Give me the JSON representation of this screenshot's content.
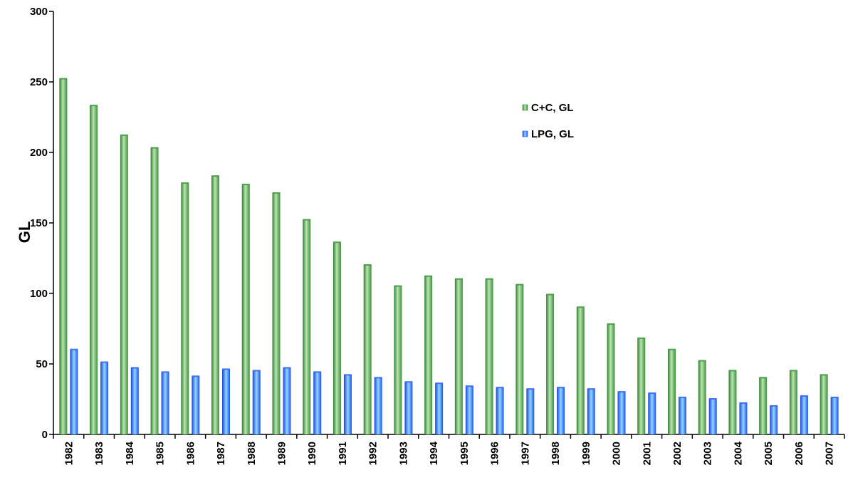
{
  "chart_data": {
    "type": "bar",
    "title": "",
    "ylabel": "GL",
    "xlabel": "",
    "ylim": [
      0,
      300
    ],
    "yticks": [
      0,
      50,
      100,
      150,
      200,
      250,
      300
    ],
    "grid": false,
    "legend_position": "top-right",
    "categories": [
      "1982",
      "1983",
      "1984",
      "1985",
      "1986",
      "1987",
      "1988",
      "1989",
      "1990",
      "1991",
      "1992",
      "1993",
      "1994",
      "1995",
      "1996",
      "1997",
      "1998",
      "1999",
      "2000",
      "2001",
      "2002",
      "2003",
      "2004",
      "2005",
      "2006",
      "2007"
    ],
    "series": [
      {
        "name": "C+C, GL",
        "color": "#3a8f3a",
        "values": [
          252,
          233,
          212,
          203,
          178,
          183,
          177,
          171,
          152,
          136,
          120,
          105,
          112,
          110,
          110,
          106,
          99,
          90,
          78,
          68,
          60,
          52,
          45,
          40,
          45,
          42
        ]
      },
      {
        "name": "LPG, GL",
        "color": "#2a5cf0",
        "values": [
          60,
          51,
          47,
          44,
          41,
          46,
          45,
          47,
          44,
          42,
          40,
          37,
          36,
          34,
          33,
          32,
          33,
          32,
          30,
          29,
          26,
          25,
          22,
          20,
          27,
          26
        ]
      }
    ]
  }
}
